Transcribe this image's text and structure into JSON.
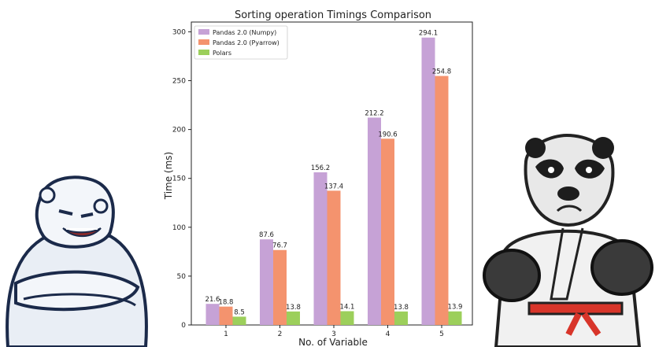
{
  "chart_data": {
    "type": "bar",
    "title": "Sorting operation Timings Comparison",
    "xlabel": "No. of Variable",
    "ylabel": "Time (ms)",
    "categories": [
      "1",
      "2",
      "3",
      "4",
      "5"
    ],
    "ylim": [
      0,
      310
    ],
    "yticks": [
      0,
      50,
      100,
      150,
      200,
      250,
      300
    ],
    "grid": false,
    "legend_position": "top-left",
    "series": [
      {
        "name": "Pandas 2.0 (Numpy)",
        "color": "#c6a2d6",
        "values": [
          21.6,
          87.6,
          156.2,
          212.2,
          294.1
        ]
      },
      {
        "name": "Pandas 2.0 (Pyarrow)",
        "color": "#f4936e",
        "values": [
          18.8,
          76.7,
          137.4,
          190.6,
          254.8
        ]
      },
      {
        "name": "Polars",
        "color": "#9ccf5b",
        "values": [
          8.5,
          13.8,
          14.1,
          13.8,
          13.9
        ]
      }
    ]
  },
  "decorations": {
    "left_mascot_icon": "polar-bear-mascot-icon",
    "right_mascot_icon": "panda-boxer-mascot-icon"
  }
}
